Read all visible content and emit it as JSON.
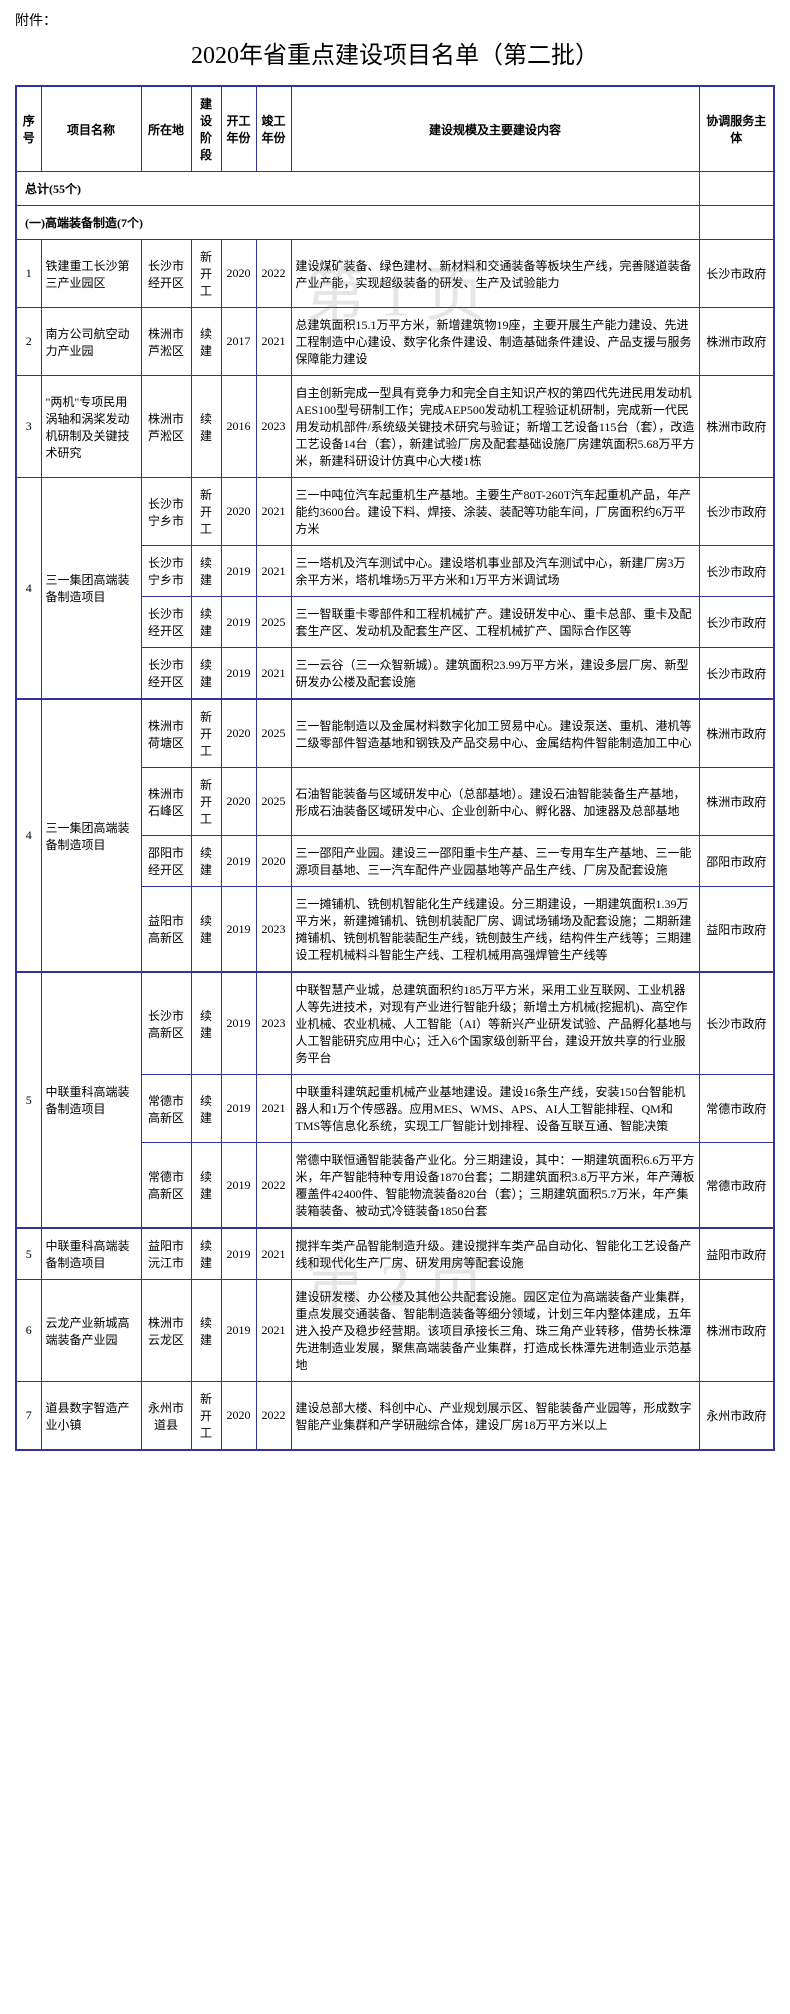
{
  "attachment": "附件：",
  "title": "2020年省重点建设项目名单（第二批）",
  "watermarks": [
    "第 1 页",
    "第 2 页"
  ],
  "headers": {
    "seq": "序号",
    "name": "项目名称",
    "loc": "所在地",
    "stage": "建设阶段",
    "start": "开工年份",
    "end": "竣工年份",
    "content": "建设规模及主要建设内容",
    "coord": "协调服务主体"
  },
  "total_label": "总计(55个)",
  "section1_label": "(一)高端装备制造(7个)",
  "rows": [
    {
      "seq": "1",
      "name": "铁建重工长沙第三产业园区",
      "loc": "长沙市经开区",
      "stage": "新开工",
      "start": "2020",
      "end": "2022",
      "content": "建设煤矿装备、绿色建材、新材料和交通装备等板块生产线，完善隧道装备产业产能，实现超级装备的研发、生产及试验能力",
      "coord": "长沙市政府"
    },
    {
      "seq": "2",
      "name": "南方公司航空动力产业园",
      "loc": "株洲市芦淞区",
      "stage": "续建",
      "start": "2017",
      "end": "2021",
      "content": "总建筑面积15.1万平方米，新增建筑物19座，主要开展生产能力建设、先进工程制造中心建设、数字化条件建设、制造基础条件建设、产品支援与服务保障能力建设",
      "coord": "株洲市政府"
    },
    {
      "seq": "3",
      "name": "\"两机\"专项民用涡轴和涡桨发动机研制及关键技术研究",
      "loc": "株洲市芦淞区",
      "stage": "续建",
      "start": "2016",
      "end": "2023",
      "content": "自主创新完成一型具有竞争力和完全自主知识产权的第四代先进民用发动机AES100型号研制工作；完成AEP500发动机工程验证机研制，完成新一代民用发动机部件/系统级关键技术研究与验证；新增工艺设备115台（套），改造工艺设备14台（套），新建试验厂房及配套基础设施厂房建筑面积5.68万平方米，新建科研设计仿真中心大楼1栋",
      "coord": "株洲市政府"
    },
    {
      "group": "g4a",
      "seq": "4",
      "name": "三一集团高端装备制造项目",
      "name_rowspan": 4,
      "seq_rowspan": 4,
      "loc": "长沙市宁乡市",
      "stage": "新开工",
      "start": "2020",
      "end": "2021",
      "content": "三一中吨位汽车起重机生产基地。主要生产80T-260T汽车起重机产品，年产能约3600台。建设下料、焊接、涂装、装配等功能车间，厂房面积约6万平方米",
      "coord": "长沙市政府"
    },
    {
      "group": "g4a",
      "loc": "长沙市宁乡市",
      "stage": "续建",
      "start": "2019",
      "end": "2021",
      "content": "三一塔机及汽车测试中心。建设塔机事业部及汽车测试中心，新建厂房3万余平方米，塔机堆场5万平方米和1万平方米调试场",
      "coord": "长沙市政府"
    },
    {
      "group": "g4a",
      "loc": "长沙市经开区",
      "stage": "续建",
      "start": "2019",
      "end": "2025",
      "content": "三一智联重卡零部件和工程机械扩产。建设研发中心、重卡总部、重卡及配套生产区、发动机及配套生产区、工程机械扩产、国际合作区等",
      "coord": "长沙市政府"
    },
    {
      "group": "g4a",
      "loc": "长沙市经开区",
      "stage": "续建",
      "start": "2019",
      "end": "2021",
      "content": "三一云谷（三一众智新城）。建筑面积23.99万平方米，建设多层厂房、新型研发办公楼及配套设施",
      "coord": "长沙市政府"
    },
    {
      "group": "g4b",
      "seq": "4",
      "name": "三一集团高端装备制造项目",
      "name_rowspan": 4,
      "seq_rowspan": 4,
      "loc": "株洲市荷塘区",
      "stage": "新开工",
      "start": "2020",
      "end": "2025",
      "content": "三一智能制造以及金属材料数字化加工贸易中心。建设泵送、重机、港机等二级零部件智造基地和钢铁及产品交易中心、金属结构件智能制造加工中心",
      "coord": "株洲市政府",
      "thick": true
    },
    {
      "group": "g4b",
      "loc": "株洲市石峰区",
      "stage": "新开工",
      "start": "2020",
      "end": "2025",
      "content": "石油智能装备与区域研发中心（总部基地）。建设石油智能装备生产基地，形成石油装备区域研发中心、企业创新中心、孵化器、加速器及总部基地",
      "coord": "株洲市政府"
    },
    {
      "group": "g4b",
      "loc": "邵阳市经开区",
      "stage": "续建",
      "start": "2019",
      "end": "2020",
      "content": "三一邵阳产业园。建设三一邵阳重卡生产基、三一专用车生产基地、三一能源项目基地、三一汽车配件产业园基地等产品生产线、厂房及配套设施",
      "coord": "邵阳市政府"
    },
    {
      "group": "g4b",
      "loc": "益阳市高新区",
      "stage": "续建",
      "start": "2019",
      "end": "2023",
      "content": "三一摊铺机、铣刨机智能化生产线建设。分三期建设，一期建筑面积1.39万平方米，新建摊铺机、铣刨机装配厂房、调试场铺场及配套设施；二期新建摊铺机、铣刨机智能装配生产线，铣刨鼓生产线，结构件生产线等；三期建设工程机械料斗智能生产线、工程机械用高强焊管生产线等",
      "coord": "益阳市政府"
    },
    {
      "group": "g5a",
      "seq": "5",
      "name": "中联重科高端装备制造项目",
      "name_rowspan": 3,
      "seq_rowspan": 3,
      "loc": "长沙市高新区",
      "stage": "续建",
      "start": "2019",
      "end": "2023",
      "content": "中联智慧产业城，总建筑面积约185万平方米，采用工业互联网、工业机器人等先进技术，对现有产业进行智能升级；新增土方机械(挖掘机)、高空作业机械、农业机械、人工智能（AI）等新兴产业研发试验、产品孵化基地与人工智能研究应用中心；迁入6个国家级创新平台，建设开放共享的行业服务平台",
      "coord": "长沙市政府",
      "thick": true
    },
    {
      "group": "g5a",
      "loc": "常德市高新区",
      "stage": "续建",
      "start": "2019",
      "end": "2021",
      "content": "中联重科建筑起重机械产业基地建设。建设16条生产线，安装150台智能机器人和1万个传感器。应用MES、WMS、APS、AI人工智能排程、QM和TMS等信息化系统，实现工厂智能计划排程、设备互联互通、智能决策",
      "coord": "常德市政府"
    },
    {
      "group": "g5a",
      "loc": "常德市高新区",
      "stage": "续建",
      "start": "2019",
      "end": "2022",
      "content": "常德中联恒通智能装备产业化。分三期建设，其中：一期建筑面积6.6万平方米，年产智能特种专用设备1870台套；二期建筑面积3.8万平方米，年产薄板覆盖件42400件、智能物流装备820台（套）；三期建筑面积5.7万米，年产集装箱装备、被动式冷链装备1850台套",
      "coord": "常德市政府"
    },
    {
      "seq": "5",
      "name": "中联重科高端装备制造项目",
      "loc": "益阳市沅江市",
      "stage": "续建",
      "start": "2019",
      "end": "2021",
      "content": "搅拌车类产品智能制造升级。建设搅拌车类产品自动化、智能化工艺设备产线和现代化生产厂房、研发用房等配套设施",
      "coord": "益阳市政府",
      "thick": true
    },
    {
      "seq": "6",
      "name": "云龙产业新城高端装备产业园",
      "loc": "株洲市云龙区",
      "stage": "续建",
      "start": "2019",
      "end": "2021",
      "content": "建设研发楼、办公楼及其他公共配套设施。园区定位为高端装备产业集群，重点发展交通装备、智能制造装备等细分领域，计划三年内整体建成，五年进入投产及稳步经营期。该项目承接长三角、珠三角产业转移，借势长株潭先进制造业发展，聚焦高端装备产业集群，打造成长株潭先进制造业示范基地",
      "coord": "株洲市政府"
    },
    {
      "seq": "7",
      "name": "道县数字智造产业小镇",
      "loc": "永州市道县",
      "stage": "新开工",
      "start": "2020",
      "end": "2022",
      "content": "建设总部大楼、科创中心、产业规划展示区、智能装备产业园等，形成数字智能产业集群和产学研融综合体，建设厂房18万平方米以上",
      "coord": "永州市政府"
    }
  ]
}
